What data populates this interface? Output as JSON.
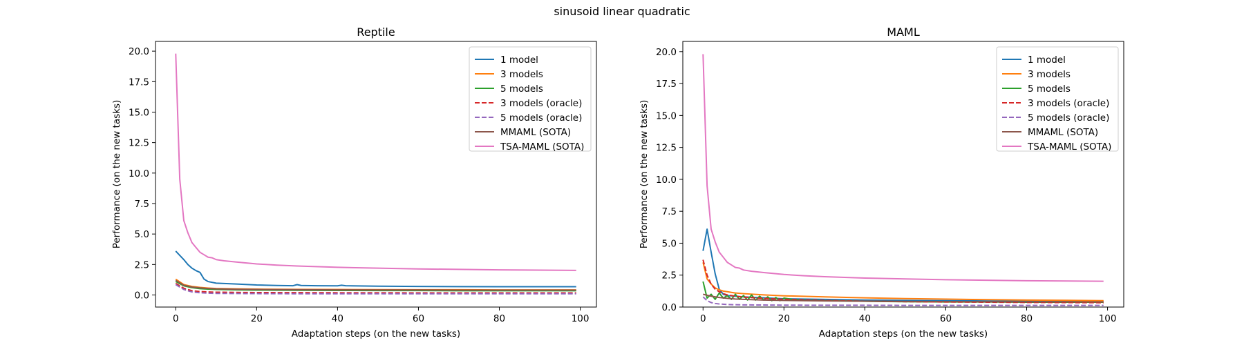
{
  "figure": {
    "title": "sinusoid linear quadratic"
  },
  "chart_data": [
    {
      "type": "line",
      "title": "Reptile",
      "xlabel": "Adaptation steps (on the new tasks)",
      "ylabel": "Performance (on the new tasks)",
      "xlim": [
        -5,
        104
      ],
      "ylim": [
        -0.99,
        20.8
      ],
      "xticks": [
        0,
        20,
        40,
        60,
        80,
        100
      ],
      "yticks": [
        0.0,
        2.5,
        5.0,
        7.5,
        10.0,
        12.5,
        15.0,
        17.5,
        20.0
      ],
      "xtick_labels": [
        "0",
        "20",
        "40",
        "60",
        "80",
        "100"
      ],
      "ytick_labels": [
        "0.0",
        "2.5",
        "5.0",
        "7.5",
        "10.0",
        "12.5",
        "15.0",
        "17.5",
        "20.0"
      ],
      "grid": false,
      "legend_position": "upper right",
      "series": [
        {
          "name": "1 model",
          "color": "#1f77b4",
          "dash": "solid",
          "x": [
            0,
            2,
            3,
            4,
            5,
            6,
            7,
            8,
            10,
            15,
            20,
            25,
            29,
            30,
            31,
            32,
            35,
            40,
            41,
            42,
            50,
            60,
            70,
            80,
            90,
            99
          ],
          "y": [
            3.6,
            2.9,
            2.5,
            2.2,
            2.0,
            1.85,
            1.3,
            1.1,
            0.97,
            0.9,
            0.82,
            0.78,
            0.76,
            0.85,
            0.78,
            0.77,
            0.76,
            0.75,
            0.8,
            0.76,
            0.72,
            0.7,
            0.69,
            0.68,
            0.68,
            0.68
          ]
        },
        {
          "name": "3 models",
          "color": "#ff7f0e",
          "dash": "solid",
          "x": [
            0,
            2,
            4,
            6,
            8,
            10,
            15,
            20,
            30,
            40,
            50,
            60,
            70,
            80,
            90,
            99
          ],
          "y": [
            1.3,
            0.85,
            0.7,
            0.62,
            0.57,
            0.53,
            0.5,
            0.48,
            0.46,
            0.45,
            0.44,
            0.43,
            0.43,
            0.42,
            0.42,
            0.42
          ]
        },
        {
          "name": "5 models",
          "color": "#2ca02c",
          "dash": "solid",
          "x": [
            0,
            2,
            4,
            6,
            8,
            10,
            15,
            20,
            30,
            40,
            50,
            60,
            70,
            80,
            90,
            99
          ],
          "y": [
            1.1,
            0.75,
            0.6,
            0.52,
            0.48,
            0.45,
            0.42,
            0.4,
            0.38,
            0.37,
            0.36,
            0.36,
            0.35,
            0.35,
            0.35,
            0.35
          ]
        },
        {
          "name": "3 models (oracle)",
          "color": "#d62728",
          "dash": "dashed",
          "x": [
            0,
            2,
            4,
            6,
            8,
            10,
            15,
            20,
            30,
            40,
            50,
            60,
            70,
            80,
            90,
            99
          ],
          "y": [
            0.95,
            0.55,
            0.35,
            0.28,
            0.25,
            0.23,
            0.21,
            0.2,
            0.19,
            0.18,
            0.18,
            0.17,
            0.17,
            0.17,
            0.17,
            0.17
          ]
        },
        {
          "name": "5 models (oracle)",
          "color": "#9467bd",
          "dash": "dashed",
          "x": [
            0,
            2,
            4,
            6,
            8,
            10,
            15,
            20,
            30,
            40,
            50,
            60,
            70,
            80,
            90,
            99
          ],
          "y": [
            0.85,
            0.45,
            0.25,
            0.18,
            0.15,
            0.13,
            0.12,
            0.11,
            0.1,
            0.1,
            0.1,
            0.1,
            0.1,
            0.1,
            0.1,
            0.1
          ]
        },
        {
          "name": "MMAML (SOTA)",
          "color": "#8c564b",
          "dash": "solid",
          "x": [
            0,
            2,
            4,
            6,
            8,
            10,
            15,
            20,
            30,
            40,
            50,
            60,
            70,
            80,
            90,
            99
          ],
          "y": [
            1.2,
            0.8,
            0.65,
            0.58,
            0.53,
            0.5,
            0.47,
            0.45,
            0.43,
            0.42,
            0.41,
            0.41,
            0.4,
            0.4,
            0.4,
            0.4
          ]
        },
        {
          "name": "TSA-MAML (SOTA)",
          "color": "#e377c2",
          "dash": "solid",
          "x": [
            0,
            1,
            2,
            3,
            4,
            5,
            6,
            7,
            8,
            9,
            10,
            12,
            15,
            20,
            25,
            30,
            40,
            50,
            60,
            70,
            80,
            90,
            99
          ],
          "y": [
            19.8,
            9.5,
            6.1,
            5.1,
            4.3,
            3.9,
            3.5,
            3.3,
            3.1,
            3.05,
            2.9,
            2.8,
            2.7,
            2.55,
            2.45,
            2.38,
            2.27,
            2.2,
            2.14,
            2.1,
            2.06,
            2.04,
            2.02
          ]
        }
      ]
    },
    {
      "type": "line",
      "title": "MAML",
      "xlabel": "Adaptation steps (on the new tasks)",
      "ylabel": "Performance (on the new tasks)",
      "xlim": [
        -5,
        104
      ],
      "ylim": [
        0.0,
        20.8
      ],
      "xticks": [
        0,
        20,
        40,
        60,
        80,
        100
      ],
      "yticks": [
        0.0,
        2.5,
        5.0,
        7.5,
        10.0,
        12.5,
        15.0,
        17.5,
        20.0
      ],
      "xtick_labels": [
        "0",
        "20",
        "40",
        "60",
        "80",
        "100"
      ],
      "ytick_labels": [
        "0.0",
        "2.5",
        "5.0",
        "7.5",
        "10.0",
        "12.5",
        "15.0",
        "17.5",
        "20.0"
      ],
      "grid": false,
      "legend_position": "upper right",
      "series": [
        {
          "name": "1 model",
          "color": "#1f77b4",
          "dash": "solid",
          "x": [
            0,
            1,
            2,
            3,
            4,
            5,
            6,
            8,
            10,
            15,
            20,
            30,
            40,
            50,
            60,
            70,
            80,
            90,
            99
          ],
          "y": [
            4.4,
            6.1,
            4.3,
            2.6,
            1.4,
            1.0,
            0.9,
            0.85,
            0.8,
            0.72,
            0.65,
            0.6,
            0.55,
            0.52,
            0.5,
            0.48,
            0.46,
            0.45,
            0.45
          ]
        },
        {
          "name": "3 models",
          "color": "#ff7f0e",
          "dash": "solid",
          "x": [
            0,
            1,
            2,
            3,
            4,
            5,
            6,
            7,
            8,
            10,
            15,
            20,
            30,
            40,
            50,
            60,
            70,
            80,
            90,
            99
          ],
          "y": [
            3.5,
            2.2,
            1.8,
            1.5,
            1.35,
            1.25,
            1.2,
            1.15,
            1.1,
            1.05,
            0.95,
            0.88,
            0.8,
            0.72,
            0.66,
            0.62,
            0.58,
            0.55,
            0.53,
            0.5
          ]
        },
        {
          "name": "5 models",
          "color": "#2ca02c",
          "dash": "solid",
          "x": [
            0,
            1,
            2,
            3,
            4,
            5,
            6,
            7,
            8,
            9,
            10,
            11,
            12,
            13,
            14,
            15,
            16,
            17,
            18,
            19,
            20,
            22,
            25,
            30,
            40,
            50,
            60,
            70,
            80,
            90,
            99
          ],
          "y": [
            2.0,
            0.7,
            1.0,
            0.6,
            1.1,
            0.7,
            0.9,
            0.6,
            1.0,
            0.6,
            0.9,
            0.55,
            0.95,
            0.55,
            0.85,
            0.55,
            0.8,
            0.5,
            0.75,
            0.5,
            0.7,
            0.6,
            0.55,
            0.5,
            0.45,
            0.42,
            0.4,
            0.4,
            0.38,
            0.38,
            0.38
          ]
        },
        {
          "name": "3 models (oracle)",
          "color": "#d62728",
          "dash": "dashed",
          "x": [
            0,
            1,
            2,
            3,
            4,
            5,
            6,
            8,
            10,
            15,
            20,
            30,
            40,
            50,
            60,
            70,
            80,
            90,
            99
          ],
          "y": [
            3.7,
            2.5,
            1.8,
            1.4,
            1.2,
            1.05,
            0.95,
            0.85,
            0.78,
            0.68,
            0.6,
            0.52,
            0.46,
            0.42,
            0.4,
            0.38,
            0.36,
            0.35,
            0.34
          ]
        },
        {
          "name": "5 models (oracle)",
          "color": "#9467bd",
          "dash": "dashed",
          "x": [
            0,
            1,
            2,
            3,
            4,
            6,
            8,
            10,
            15,
            20,
            30,
            40,
            50,
            60,
            70,
            80,
            90,
            99
          ],
          "y": [
            0.8,
            0.5,
            0.35,
            0.28,
            0.24,
            0.2,
            0.18,
            0.17,
            0.16,
            0.15,
            0.14,
            0.14,
            0.13,
            0.13,
            0.13,
            0.13,
            0.13,
            0.13
          ]
        },
        {
          "name": "MMAML (SOTA)",
          "color": "#8c564b",
          "dash": "solid",
          "x": [
            0,
            2,
            4,
            6,
            8,
            10,
            15,
            20,
            30,
            40,
            50,
            60,
            70,
            80,
            90,
            99
          ],
          "y": [
            1.0,
            0.85,
            0.75,
            0.68,
            0.63,
            0.6,
            0.55,
            0.52,
            0.48,
            0.46,
            0.44,
            0.43,
            0.42,
            0.41,
            0.41,
            0.4
          ]
        },
        {
          "name": "TSA-MAML (SOTA)",
          "color": "#e377c2",
          "dash": "solid",
          "x": [
            0,
            1,
            2,
            3,
            4,
            5,
            6,
            7,
            8,
            9,
            10,
            12,
            15,
            20,
            25,
            30,
            40,
            50,
            60,
            70,
            80,
            90,
            99
          ],
          "y": [
            19.8,
            9.5,
            6.1,
            5.1,
            4.3,
            3.9,
            3.5,
            3.3,
            3.1,
            3.05,
            2.9,
            2.8,
            2.7,
            2.55,
            2.45,
            2.38,
            2.27,
            2.2,
            2.14,
            2.1,
            2.06,
            2.04,
            2.02
          ]
        }
      ]
    }
  ]
}
